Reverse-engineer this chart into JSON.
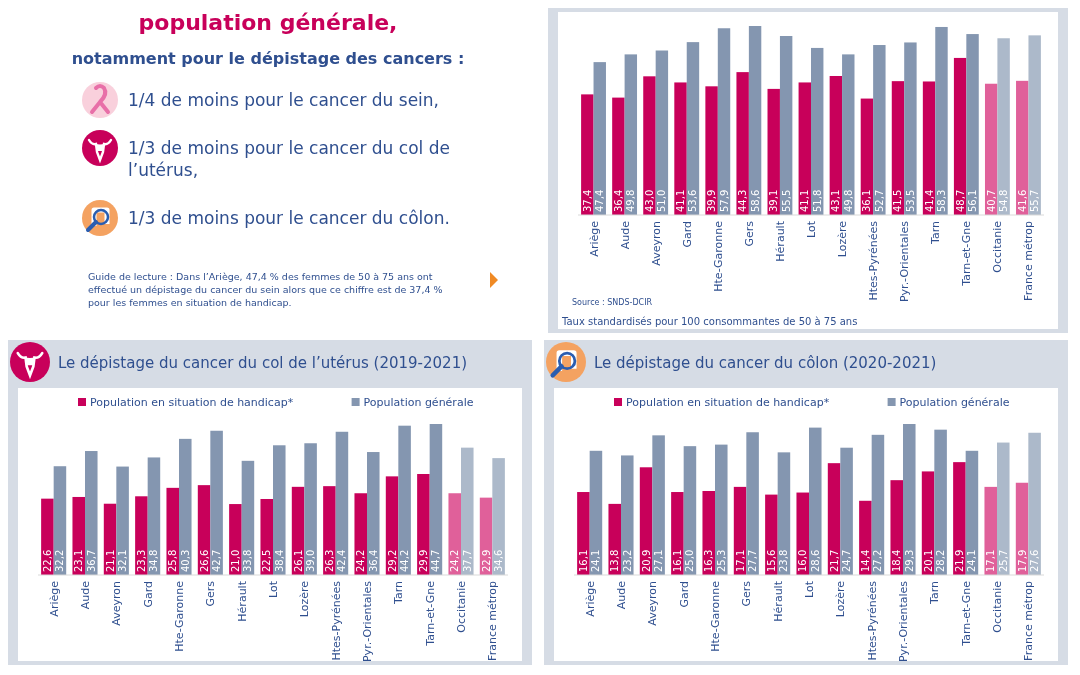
{
  "chart_data": [
    {
      "type": "other",
      "title": "population générale,",
      "subtitle": "notamment pour le dépistage des cancers :",
      "annotations": [
        "1/4 de moins pour le cancer du sein,",
        "1/3 de moins pour le cancer du col de l’utérus,",
        "1/3 de moins pour le cancer du côlon.",
        "Guide de lecture : Dans l’Ariège, 47,4 % des femmes de 50 à 75 ans ont effectué un dépistage du cancer du sein alors que ce chiffre est de 37,4 % pour les femmes en situation de handicap."
      ]
    },
    {
      "type": "bar",
      "categories": [
        "Ariège",
        "Aude",
        "Aveyron",
        "Gard",
        "Hte-Garonne",
        "Gers",
        "Hérault",
        "Lot",
        "Lozère",
        "Htes-Pyrénées",
        "Pyr.-Orientales",
        "Tarn",
        "Tarn-et-Gne",
        "Occitanie",
        "France métrop"
      ],
      "annotations": [
        "Source : SNDS-DCIR",
        "Taux standardisés pour 100 consommantes de 50 à 75 ans"
      ],
      "series": [
        {
          "colors": [
            "#c8005a",
            "#c8005a",
            "#c8005a",
            "#c8005a",
            "#c8005a",
            "#c8005a",
            "#c8005a",
            "#c8005a",
            "#c8005a",
            "#c8005a",
            "#c8005a",
            "#c8005a",
            "#c8005a",
            "#e0609a",
            "#e0609a"
          ],
          "values": [
            37.4,
            36.4,
            43.0,
            41.1,
            39.9,
            44.3,
            39.1,
            41.1,
            43.1,
            36.1,
            41.5,
            41.4,
            48.7,
            40.7,
            41.6
          ],
          "value_labels": [
            "37,4",
            "36,4",
            "43,0",
            "41,1",
            "39,9",
            "44,3",
            "39,1",
            "41,1",
            "43,1",
            "36,1",
            "41,5",
            "41,4",
            "48,7",
            "40,7",
            "41,6"
          ]
        },
        {
          "colors": [
            "#8496b0",
            "#8496b0",
            "#8496b0",
            "#8496b0",
            "#8496b0",
            "#8496b0",
            "#8496b0",
            "#8496b0",
            "#8496b0",
            "#8496b0",
            "#8496b0",
            "#8496b0",
            "#8496b0",
            "#acb9ca",
            "#acb9ca"
          ],
          "values": [
            47.4,
            49.8,
            51.0,
            53.6,
            57.9,
            58.6,
            55.5,
            51.8,
            49.8,
            52.7,
            53.5,
            58.3,
            56.1,
            54.8,
            55.7
          ],
          "value_labels": [
            "47,4",
            "49,8",
            "51,0",
            "53,6",
            "57,9",
            "58,6",
            "55,5",
            "51,8",
            "49,8",
            "52,7",
            "53,5",
            "58,3",
            "56,1",
            "54,8",
            "55,7"
          ]
        }
      ]
    },
    {
      "type": "bar",
      "title": "Le dépistage du cancer du col de l’utérus (2019-2021)",
      "categories": [
        "Ariège",
        "Aude",
        "Aveyron",
        "Gard",
        "Hte-Garonne",
        "Gers",
        "Hérault",
        "Lot",
        "Lozère",
        "Htes-Pyrénées",
        "Pyr.-Orientales",
        "Tarn",
        "Tarn-et-Gne",
        "Occitanie",
        "France métrop"
      ],
      "legend": "top",
      "series": [
        {
          "name": "Population en situation de handicap*",
          "color": "#c8005a",
          "colors": [
            "#c8005a",
            "#c8005a",
            "#c8005a",
            "#c8005a",
            "#c8005a",
            "#c8005a",
            "#c8005a",
            "#c8005a",
            "#c8005a",
            "#c8005a",
            "#c8005a",
            "#c8005a",
            "#c8005a",
            "#e0609a",
            "#e0609a"
          ],
          "values": [
            22.6,
            23.1,
            21.1,
            23.3,
            25.8,
            26.6,
            21.0,
            22.5,
            26.1,
            26.3,
            24.2,
            29.2,
            29.9,
            24.2,
            22.9
          ],
          "value_labels": [
            "22,6",
            "23,1",
            "21,1",
            "23,3",
            "25,8",
            "26,6",
            "21,0",
            "22,5",
            "26,1",
            "26,3",
            "24,2",
            "29,2",
            "29,9",
            "24,2",
            "22,9"
          ]
        },
        {
          "name": "Population générale",
          "color": "#8496b0",
          "colors": [
            "#8496b0",
            "#8496b0",
            "#8496b0",
            "#8496b0",
            "#8496b0",
            "#8496b0",
            "#8496b0",
            "#8496b0",
            "#8496b0",
            "#8496b0",
            "#8496b0",
            "#8496b0",
            "#8496b0",
            "#acb9ca",
            "#acb9ca"
          ],
          "values": [
            32.2,
            36.7,
            32.1,
            34.8,
            40.3,
            42.7,
            33.8,
            38.4,
            39.0,
            42.4,
            36.4,
            44.2,
            44.7,
            37.7,
            34.6
          ],
          "value_labels": [
            "32,2",
            "36,7",
            "32,1",
            "34,8",
            "40,3",
            "42,7",
            "33,8",
            "38,4",
            "39,0",
            "42,4",
            "36,4",
            "44,2",
            "44,7",
            "37,7",
            "34,6"
          ]
        }
      ]
    },
    {
      "type": "bar",
      "title": "Le dépistage du cancer du côlon (2020-2021)",
      "categories": [
        "Ariège",
        "Aude",
        "Aveyron",
        "Gard",
        "Hte-Garonne",
        "Gers",
        "Hérault",
        "Lot",
        "Lozère",
        "Htes-Pyrénées",
        "Pyr.-Orientales",
        "Tarn",
        "Tarn-et-Gne",
        "Occitanie",
        "France métrop"
      ],
      "legend": "top",
      "series": [
        {
          "name": "Population en situation de handicap*",
          "color": "#c8005a",
          "colors": [
            "#c8005a",
            "#c8005a",
            "#c8005a",
            "#c8005a",
            "#c8005a",
            "#c8005a",
            "#c8005a",
            "#c8005a",
            "#c8005a",
            "#c8005a",
            "#c8005a",
            "#c8005a",
            "#c8005a",
            "#e0609a",
            "#e0609a"
          ],
          "values": [
            16.1,
            13.8,
            20.9,
            16.1,
            16.3,
            17.1,
            15.6,
            16.0,
            21.7,
            14.4,
            18.4,
            20.1,
            21.9,
            17.1,
            17.9
          ],
          "value_labels": [
            "16,1",
            "13,8",
            "20,9",
            "16,1",
            "16,3",
            "17,1",
            "15,6",
            "16,0",
            "21,7",
            "14,4",
            "18,4",
            "20,1",
            "21,9",
            "17,1",
            "17,9"
          ]
        },
        {
          "name": "Population générale",
          "color": "#8496b0",
          "colors": [
            "#8496b0",
            "#8496b0",
            "#8496b0",
            "#8496b0",
            "#8496b0",
            "#8496b0",
            "#8496b0",
            "#8496b0",
            "#8496b0",
            "#8496b0",
            "#8496b0",
            "#8496b0",
            "#8496b0",
            "#acb9ca",
            "#acb9ca"
          ],
          "values": [
            24.1,
            23.2,
            27.1,
            25.0,
            25.3,
            27.7,
            23.8,
            28.6,
            24.7,
            27.2,
            29.3,
            28.2,
            24.1,
            25.7,
            27.6
          ],
          "value_labels": [
            "24,1",
            "23,2",
            "27,1",
            "25,0",
            "25,3",
            "27,7",
            "23,8",
            "28,6",
            "24,7",
            "27,2",
            "29,3",
            "28,2",
            "24,1",
            "25,7",
            "27,6"
          ]
        }
      ]
    }
  ]
}
